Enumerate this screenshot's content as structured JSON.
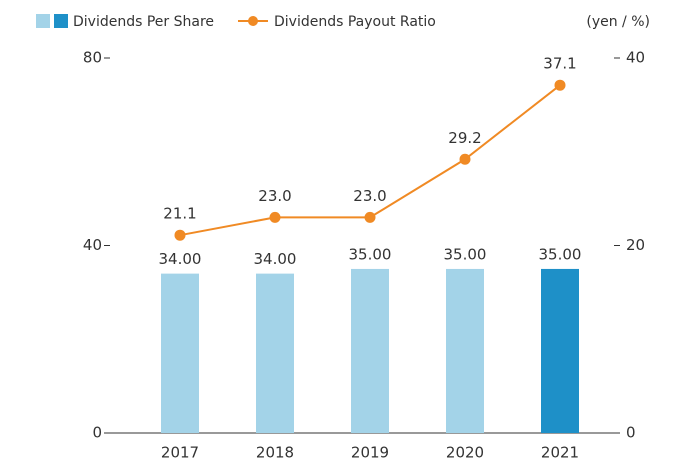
{
  "chart_data": {
    "type": "bar_line",
    "unit_label": "(yen / %)",
    "categories": [
      "2017",
      "2018",
      "2019",
      "2020",
      "2021"
    ],
    "series": [
      {
        "name": "Dividends Per Share",
        "type": "bar",
        "axis": "y",
        "color": "#a3d3e8",
        "colors": [
          "#a3d3e8",
          "#a3d3e8",
          "#a3d3e8",
          "#a3d3e8",
          "#1e90c8"
        ],
        "values": [
          34,
          34,
          35,
          35,
          35
        ],
        "value_labels": [
          "34.00",
          "34.00",
          "35.00",
          "35.00",
          "35.00"
        ]
      },
      {
        "name": "Dividends Payout Ratio",
        "type": "line",
        "axis": "y2",
        "color": "#f08a24",
        "values": [
          21.1,
          23,
          23,
          29.2,
          37.1
        ],
        "value_labels": [
          "21.1",
          "23.0",
          "23.0",
          "29.2",
          "37.1"
        ]
      }
    ],
    "ylim": [
      0,
      80
    ],
    "yticks": [
      0,
      40,
      80
    ],
    "y2lim": [
      0,
      40
    ],
    "y2ticks": [
      0,
      20,
      40
    ]
  }
}
